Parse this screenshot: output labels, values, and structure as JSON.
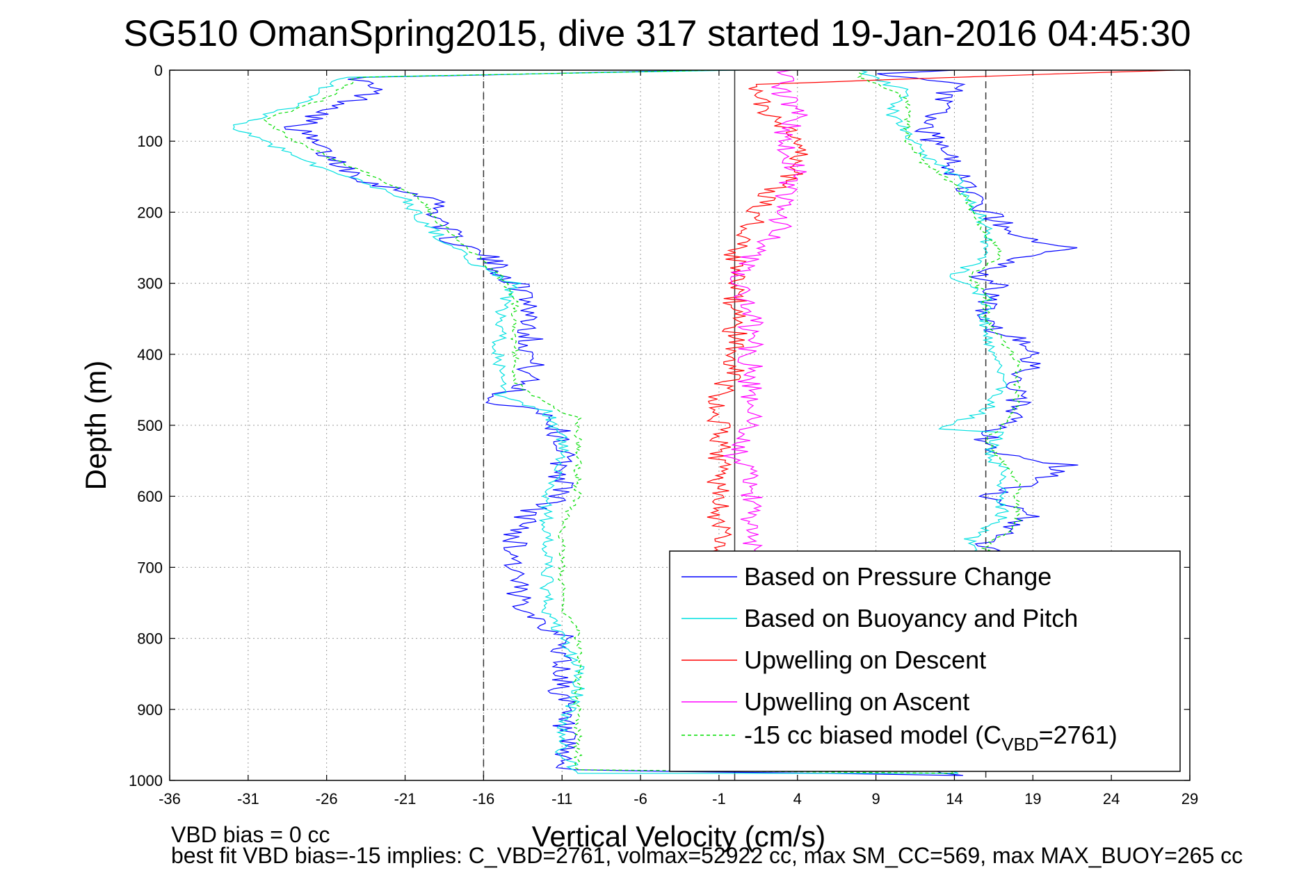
{
  "chart_data": {
    "type": "line",
    "title": "SG510 OmanSpring2015, dive 317 started 19-Jan-2016 04:45:30",
    "xlabel": "Vertical Velocity (cm/s)",
    "ylabel": "Depth (m)",
    "xlim": [
      -36,
      29
    ],
    "ylim": [
      0,
      1000
    ],
    "y_reversed": true,
    "grid": true,
    "xticks": [
      "-36",
      "-31",
      "-26",
      "-21",
      "-16",
      "-11",
      "-6",
      "-1",
      "4",
      "9",
      "14",
      "19",
      "24",
      "29"
    ],
    "yticks": [
      "0",
      "100",
      "200",
      "300",
      "400",
      "500",
      "600",
      "700",
      "800",
      "900",
      "1000"
    ],
    "reference_lines": [
      {
        "x": -16,
        "style": "dashed"
      },
      {
        "x": 16,
        "style": "dashed"
      },
      {
        "x": 0,
        "style": "solid"
      }
    ],
    "legend_position": "bottom-right",
    "series": [
      {
        "name": "Based on Pressure Change",
        "color": "#0000ff",
        "points": [
          [
            -1,
            0
          ],
          [
            -24,
            10
          ],
          [
            -23,
            30
          ],
          [
            -25,
            50
          ],
          [
            -28,
            80
          ],
          [
            -26,
            120
          ],
          [
            -23,
            160
          ],
          [
            -19,
            180
          ],
          [
            -19,
            200
          ],
          [
            -18,
            240
          ],
          [
            -16,
            260
          ],
          [
            -15,
            280
          ],
          [
            -13,
            320
          ],
          [
            -13,
            360
          ],
          [
            -13,
            400
          ],
          [
            -13,
            430
          ],
          [
            -14,
            450
          ],
          [
            -16,
            465
          ],
          [
            -12,
            480
          ],
          [
            -11,
            520
          ],
          [
            -11,
            560
          ],
          [
            -11,
            600
          ],
          [
            -13,
            620
          ],
          [
            -14,
            660
          ],
          [
            -14,
            700
          ],
          [
            -14,
            740
          ],
          [
            -11,
            800
          ],
          [
            -11,
            840
          ],
          [
            -11,
            880
          ],
          [
            -11,
            920
          ],
          [
            -11,
            960
          ],
          [
            -11,
            985
          ],
          [
            14,
            993
          ],
          [
            14,
            993
          ],
          [
            12,
            980
          ],
          [
            11,
            960
          ],
          [
            12,
            940
          ],
          [
            14,
            900
          ],
          [
            16,
            860
          ],
          [
            16,
            820
          ],
          [
            16,
            780
          ],
          [
            16,
            740
          ],
          [
            16,
            700
          ],
          [
            16,
            670
          ],
          [
            18,
            640
          ],
          [
            19,
            620
          ],
          [
            16,
            600
          ],
          [
            19,
            580
          ],
          [
            21,
            556
          ],
          [
            17,
            540
          ],
          [
            16,
            520
          ],
          [
            17,
            500
          ],
          [
            18,
            480
          ],
          [
            18,
            440
          ],
          [
            19,
            410
          ],
          [
            18,
            380
          ],
          [
            16,
            360
          ],
          [
            16,
            320
          ],
          [
            17,
            300
          ],
          [
            15,
            285
          ],
          [
            21,
            250
          ],
          [
            18,
            230
          ],
          [
            16,
            200
          ],
          [
            15,
            170
          ],
          [
            14,
            140
          ],
          [
            13,
            110
          ],
          [
            12,
            80
          ],
          [
            13,
            50
          ],
          [
            14,
            20
          ],
          [
            9,
            5
          ],
          [
            14,
            0
          ]
        ]
      },
      {
        "name": "Based on Buoyancy and Pitch",
        "color": "#00e0e0",
        "points": [
          [
            0,
            0
          ],
          [
            -25,
            10
          ],
          [
            -28,
            50
          ],
          [
            -32,
            80
          ],
          [
            -29,
            110
          ],
          [
            -26,
            140
          ],
          [
            -21,
            180
          ],
          [
            -20,
            210
          ],
          [
            -18,
            250
          ],
          [
            -16,
            280
          ],
          [
            -14,
            300
          ],
          [
            -15,
            340
          ],
          [
            -15,
            380
          ],
          [
            -15,
            420
          ],
          [
            -15,
            460
          ],
          [
            -12,
            480
          ],
          [
            -11,
            520
          ],
          [
            -11,
            560
          ],
          [
            -12,
            600
          ],
          [
            -12,
            640
          ],
          [
            -12,
            680
          ],
          [
            -12,
            720
          ],
          [
            -12,
            760
          ],
          [
            -11,
            800
          ],
          [
            -10,
            840
          ],
          [
            -10,
            880
          ],
          [
            -11,
            920
          ],
          [
            -11,
            960
          ],
          [
            -10,
            990
          ],
          [
            14,
            990
          ],
          [
            14,
            990
          ],
          [
            12,
            950
          ],
          [
            13,
            900
          ],
          [
            14,
            850
          ],
          [
            15,
            800
          ],
          [
            15,
            750
          ],
          [
            15,
            700
          ],
          [
            15,
            660
          ],
          [
            17,
            630
          ],
          [
            17,
            600
          ],
          [
            17,
            560
          ],
          [
            16,
            540
          ],
          [
            17,
            510
          ],
          [
            13,
            505
          ],
          [
            16,
            480
          ],
          [
            17,
            440
          ],
          [
            17,
            410
          ],
          [
            16,
            380
          ],
          [
            16,
            350
          ],
          [
            16,
            320
          ],
          [
            14,
            290
          ],
          [
            16,
            260
          ],
          [
            16,
            220
          ],
          [
            15,
            180
          ],
          [
            14,
            150
          ],
          [
            12,
            120
          ],
          [
            11,
            90
          ],
          [
            10,
            60
          ],
          [
            11,
            30
          ],
          [
            8,
            5
          ],
          [
            8,
            0
          ]
        ]
      },
      {
        "name": "Upwelling on Descent",
        "color": "#ff0000",
        "points": [
          [
            28,
            0
          ],
          [
            1,
            20
          ],
          [
            2,
            60
          ],
          [
            4,
            100
          ],
          [
            4,
            140
          ],
          [
            2,
            180
          ],
          [
            1,
            220
          ],
          [
            0,
            260
          ],
          [
            0,
            300
          ],
          [
            0,
            340
          ],
          [
            0,
            380
          ],
          [
            0,
            420
          ],
          [
            -1,
            460
          ],
          [
            -1,
            500
          ],
          [
            -1,
            540
          ],
          [
            -1,
            580
          ],
          [
            -1,
            620
          ],
          [
            -1,
            660
          ],
          [
            -1,
            700
          ]
        ]
      },
      {
        "name": "Upwelling on Ascent",
        "color": "#ff00ff",
        "points": [
          [
            3,
            0
          ],
          [
            3,
            30
          ],
          [
            4,
            60
          ],
          [
            3,
            100
          ],
          [
            4,
            140
          ],
          [
            3,
            180
          ],
          [
            3,
            220
          ],
          [
            1,
            260
          ],
          [
            0,
            300
          ],
          [
            1,
            340
          ],
          [
            1,
            380
          ],
          [
            1,
            420
          ],
          [
            1,
            460
          ],
          [
            1,
            500
          ],
          [
            0,
            540
          ],
          [
            1,
            580
          ],
          [
            1,
            620
          ],
          [
            1,
            660
          ],
          [
            1,
            700
          ]
        ]
      },
      {
        "name": "-15 cc biased model (C_VBD=2761)",
        "color": "#00dd00",
        "dashed": true,
        "points": [
          [
            -1,
            0
          ],
          [
            -24,
            10
          ],
          [
            -26,
            40
          ],
          [
            -30,
            70
          ],
          [
            -28,
            100
          ],
          [
            -25,
            130
          ],
          [
            -20,
            180
          ],
          [
            -19,
            210
          ],
          [
            -17,
            250
          ],
          [
            -15,
            290
          ],
          [
            -14,
            320
          ],
          [
            -14,
            360
          ],
          [
            -14,
            400
          ],
          [
            -14,
            440
          ],
          [
            -12,
            470
          ],
          [
            -10,
            490
          ],
          [
            -10,
            520
          ],
          [
            -10,
            560
          ],
          [
            -10,
            600
          ],
          [
            -11,
            640
          ],
          [
            -11,
            680
          ],
          [
            -11,
            720
          ],
          [
            -11,
            760
          ],
          [
            -10,
            790
          ],
          [
            -10,
            830
          ],
          [
            -10,
            870
          ],
          [
            -10,
            910
          ],
          [
            -10,
            950
          ],
          [
            -10,
            985
          ],
          [
            14,
            990
          ],
          [
            14,
            990
          ],
          [
            12,
            950
          ],
          [
            13,
            900
          ],
          [
            14,
            850
          ],
          [
            15,
            800
          ],
          [
            15,
            750
          ],
          [
            16,
            700
          ],
          [
            16,
            670
          ],
          [
            18,
            640
          ],
          [
            18,
            610
          ],
          [
            18,
            580
          ],
          [
            17,
            550
          ],
          [
            16,
            520
          ],
          [
            17,
            500
          ],
          [
            18,
            470
          ],
          [
            18,
            440
          ],
          [
            18,
            410
          ],
          [
            17,
            380
          ],
          [
            16,
            350
          ],
          [
            16,
            320
          ],
          [
            15,
            290
          ],
          [
            17,
            260
          ],
          [
            16,
            230
          ],
          [
            15,
            190
          ],
          [
            14,
            160
          ],
          [
            12,
            130
          ],
          [
            11,
            100
          ],
          [
            11,
            70
          ],
          [
            11,
            40
          ],
          [
            8,
            10
          ],
          [
            8,
            0
          ]
        ]
      }
    ],
    "legend_subscript_note": {
      "prefix": "-15 cc biased model (C",
      "sub": "VBD",
      "suffix": "=2761)"
    }
  },
  "footer": {
    "line1": "VBD bias = 0 cc",
    "line2": "best fit VBD bias=-15 implies: C_VBD=2761, volmax=52922 cc, max SM_CC=569, max MAX_BUOY=265 cc"
  }
}
